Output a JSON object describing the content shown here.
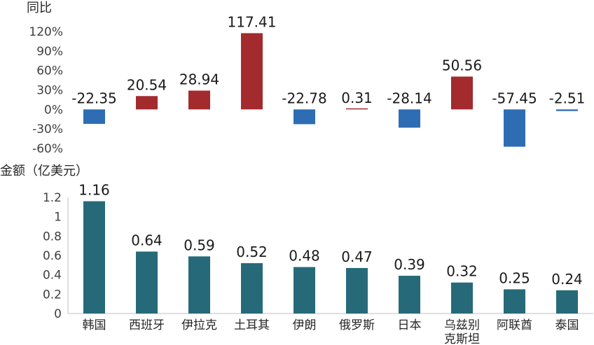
{
  "chart_data": [
    {
      "type": "bar",
      "ylabel": "同比",
      "categories": [
        "韩国",
        "西班牙",
        "伊拉克",
        "土耳其",
        "伊朗",
        "俄罗斯",
        "日本",
        "乌兹别克斯坦",
        "阿联酋",
        "泰国"
      ],
      "values": [
        -22.35,
        20.54,
        28.94,
        117.41,
        -22.78,
        0.31,
        -28.14,
        50.56,
        -57.45,
        -2.51
      ],
      "value_labels": [
        "-22.35",
        "20.54",
        "28.94",
        "117.41",
        "-22.78",
        "0.31",
        "-28.14",
        "50.56",
        "-57.45",
        "-2.51"
      ],
      "ylim": [
        -60,
        120
      ],
      "yticks": [
        "120%",
        "90%",
        "60%",
        "30%",
        "0%",
        "-30%",
        "-60%"
      ],
      "colors": {
        "positive": "#a32a2d",
        "negative": "#2e6db4"
      },
      "grid": false
    },
    {
      "type": "bar",
      "ylabel": "金额（亿美元）",
      "categories": [
        "韩国",
        "西班牙",
        "伊拉克",
        "土耳其",
        "伊朗",
        "俄罗斯",
        "日本",
        "乌兹别克斯坦",
        "阿联酋",
        "泰国"
      ],
      "category_labels": [
        [
          "韩国"
        ],
        [
          "西班牙"
        ],
        [
          "伊拉克"
        ],
        [
          "土耳其"
        ],
        [
          "伊朗"
        ],
        [
          "俄罗斯"
        ],
        [
          "日本"
        ],
        [
          "乌兹别",
          "克斯坦"
        ],
        [
          "阿联酋"
        ],
        [
          "泰国"
        ]
      ],
      "values": [
        1.16,
        0.64,
        0.59,
        0.52,
        0.48,
        0.47,
        0.39,
        0.32,
        0.25,
        0.24
      ],
      "value_labels": [
        "1.16",
        "0.64",
        "0.59",
        "0.52",
        "0.48",
        "0.47",
        "0.39",
        "0.32",
        "0.25",
        "0.24"
      ],
      "ylim": [
        0,
        1.2
      ],
      "yticks": [
        "1.2",
        "1",
        "0.8",
        "0.6",
        "0.4",
        "0.2",
        "0"
      ],
      "colors": {
        "bar": "#266a79"
      },
      "grid": false
    }
  ]
}
